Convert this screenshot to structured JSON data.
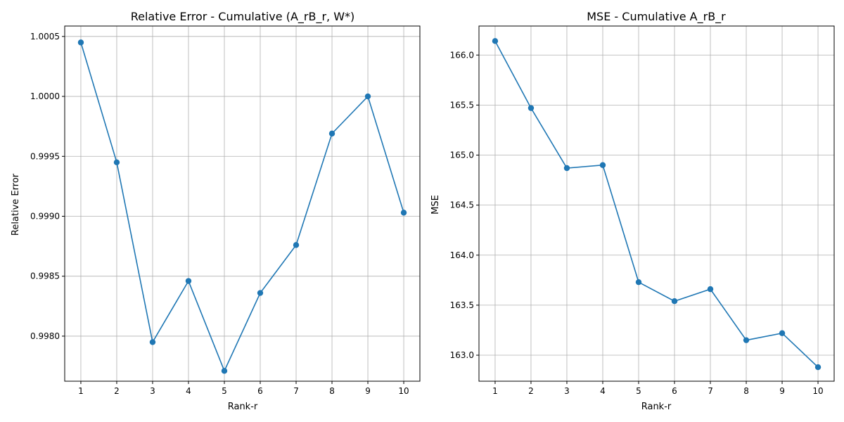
{
  "chart_data": [
    {
      "type": "line",
      "title": "Relative Error - Cumulative (A_rB_r, W*)",
      "xlabel": "Rank-r",
      "ylabel": "Relative Error",
      "x": [
        1,
        2,
        3,
        4,
        5,
        6,
        7,
        8,
        9,
        10
      ],
      "series": [
        {
          "values": [
            1.00045,
            0.99945,
            0.99795,
            0.99846,
            0.99771,
            0.99836,
            0.99876,
            0.99969,
            1.0,
            0.99903
          ]
        }
      ],
      "xticks": [
        "1",
        "2",
        "3",
        "4",
        "5",
        "6",
        "7",
        "8",
        "9",
        "10"
      ],
      "yticks": [
        "0.9980",
        "0.9985",
        "0.9990",
        "0.9995",
        "1.0000",
        "1.0005"
      ],
      "xlim": [
        0.55,
        10.45
      ],
      "ylim": [
        0.997624,
        1.000587
      ],
      "grid": true,
      "marker": "circle",
      "color": "#1f77b4"
    },
    {
      "type": "line",
      "title": "MSE - Cumulative A_rB_r",
      "xlabel": "Rank-r",
      "ylabel": "MSE",
      "x": [
        1,
        2,
        3,
        4,
        5,
        6,
        7,
        8,
        9,
        10
      ],
      "series": [
        {
          "values": [
            166.14,
            165.47,
            164.87,
            164.9,
            163.73,
            163.54,
            163.66,
            163.15,
            163.22,
            162.88
          ]
        }
      ],
      "xticks": [
        "1",
        "2",
        "3",
        "4",
        "5",
        "6",
        "7",
        "8",
        "9",
        "10"
      ],
      "yticks": [
        "163.0",
        "163.5",
        "164.0",
        "164.5",
        "165.0",
        "165.5",
        "166.0"
      ],
      "xlim": [
        0.55,
        10.45
      ],
      "ylim": [
        162.74,
        166.29
      ],
      "grid": true,
      "marker": "circle",
      "color": "#1f77b4"
    }
  ]
}
